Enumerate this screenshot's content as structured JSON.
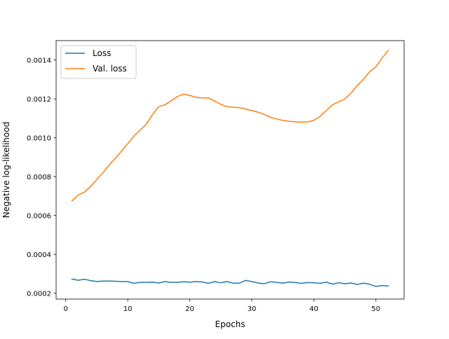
{
  "chart_data": {
    "type": "line",
    "title": "",
    "xlabel": "Epochs",
    "ylabel": "Negative log-likelihood",
    "xlim": [
      -1.55,
      54.55
    ],
    "ylim": [
      0.00017,
      0.0015
    ],
    "xticks": [
      0,
      10,
      20,
      30,
      40,
      50
    ],
    "xtick_labels": [
      "0",
      "10",
      "20",
      "30",
      "40",
      "50"
    ],
    "yticks": [
      0.0002,
      0.0004,
      0.0006,
      0.0008,
      0.001,
      0.0012,
      0.0014
    ],
    "ytick_labels": [
      "0.0002",
      "0.0004",
      "0.0006",
      "0.0008",
      "0.0010",
      "0.0012",
      "0.0014"
    ],
    "grid": false,
    "legend_position": "top-left",
    "x": [
      1,
      2,
      3,
      4,
      5,
      6,
      7,
      8,
      9,
      10,
      11,
      12,
      13,
      14,
      15,
      16,
      17,
      18,
      19,
      20,
      21,
      22,
      23,
      24,
      25,
      26,
      27,
      28,
      29,
      30,
      31,
      32,
      33,
      34,
      35,
      36,
      37,
      38,
      39,
      40,
      41,
      42,
      43,
      44,
      45,
      46,
      47,
      48,
      49,
      50,
      51,
      52
    ],
    "series": [
      {
        "name": "Loss",
        "color": "#1f77b4",
        "values": [
          0.000273,
          0.000267,
          0.000272,
          0.000265,
          0.00026,
          0.000263,
          0.000263,
          0.000262,
          0.00026,
          0.00026,
          0.000251,
          0.000256,
          0.000256,
          0.000257,
          0.000253,
          0.00026,
          0.000256,
          0.000256,
          0.000259,
          0.000257,
          0.00026,
          0.000258,
          0.000251,
          0.00026,
          0.000254,
          0.00026,
          0.000252,
          0.000252,
          0.000266,
          0.00026,
          0.000253,
          0.000249,
          0.000259,
          0.000256,
          0.000252,
          0.000258,
          0.000255,
          0.000251,
          0.000255,
          0.000254,
          0.000251,
          0.000257,
          0.000247,
          0.000254,
          0.000249,
          0.000253,
          0.000245,
          0.000252,
          0.000246,
          0.000235,
          0.00024,
          0.000237
        ]
      },
      {
        "name": "Val. loss",
        "color": "#ff7f0e",
        "values": [
          0.000675,
          0.000705,
          0.00072,
          0.00075,
          0.000785,
          0.00082,
          0.00086,
          0.000895,
          0.000932,
          0.00097,
          0.00101,
          0.00104,
          0.00107,
          0.00112,
          0.00116,
          0.00117,
          0.00119,
          0.001212,
          0.001225,
          0.001218,
          0.001208,
          0.001205,
          0.001205,
          0.00119,
          0.001172,
          0.00116,
          0.001157,
          0.001155,
          0.001148,
          0.00114,
          0.001132,
          0.00112,
          0.001105,
          0.001097,
          0.001089,
          0.001085,
          0.001082,
          0.00108,
          0.001082,
          0.00109,
          0.00111,
          0.00114,
          0.00117,
          0.001185,
          0.0012,
          0.00123,
          0.00127,
          0.0013,
          0.00134,
          0.001365,
          0.00141,
          0.00145
        ]
      }
    ]
  }
}
